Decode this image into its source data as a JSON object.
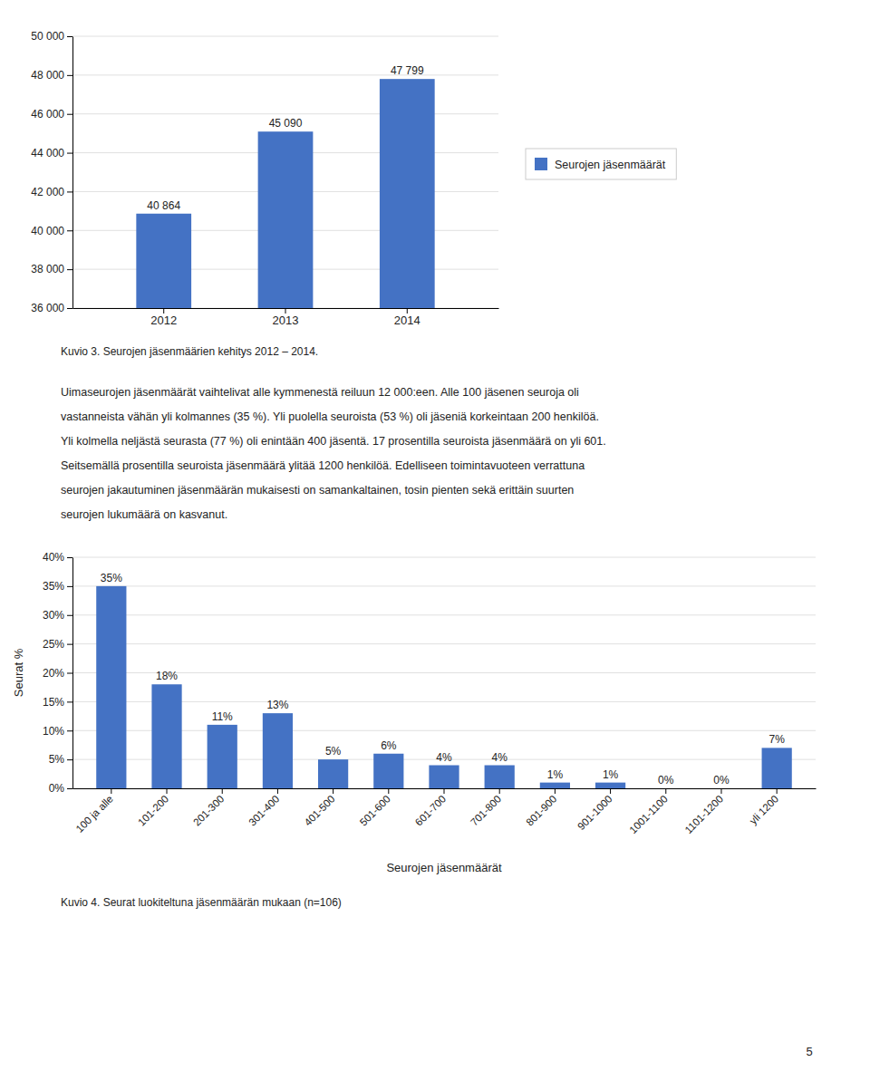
{
  "chart_data": [
    {
      "type": "bar",
      "categories": [
        "2012",
        "2013",
        "2014"
      ],
      "series": [
        {
          "name": "Seurojen jäsenmäärät",
          "color": "#4472C4",
          "values": [
            40864,
            45090,
            47799
          ],
          "value_labels": [
            "40 864",
            "45 090",
            "47 799"
          ]
        }
      ],
      "ylim": [
        36000,
        50000
      ],
      "yticks": [
        {
          "value": 36000,
          "label": "36 000"
        },
        {
          "value": 38000,
          "label": "38 000"
        },
        {
          "value": 40000,
          "label": "40 000"
        },
        {
          "value": 42000,
          "label": "42 000"
        },
        {
          "value": 44000,
          "label": "44 000"
        },
        {
          "value": 46000,
          "label": "46 000"
        },
        {
          "value": 48000,
          "label": "48 000"
        },
        {
          "value": 50000,
          "label": "50 000"
        }
      ],
      "grid": true,
      "legend": "right",
      "data_labels": true,
      "annotations": [
        "Kuvio 3. Seurojen jäsenmäärien kehitys 2012 – 2014."
      ]
    },
    {
      "type": "bar",
      "categories": [
        "100 ja alle",
        "101-200",
        "201-300",
        "301-400",
        "401-500",
        "501-600",
        "601-700",
        "701-800",
        "801-900",
        "901-1000",
        "1001-1100",
        "1101-1200",
        "yli 1200"
      ],
      "values": [
        35,
        18,
        11,
        13,
        5,
        6,
        4,
        4,
        1,
        1,
        0,
        0,
        7
      ],
      "value_labels": [
        "35%",
        "18%",
        "11%",
        "13%",
        "5%",
        "6%",
        "4%",
        "4%",
        "1%",
        "1%",
        "0%",
        "0%",
        "7%"
      ],
      "color": "#4472C4",
      "ylim": [
        0,
        40
      ],
      "yticks": [
        {
          "value": 0,
          "label": "0%"
        },
        {
          "value": 5,
          "label": "5%"
        },
        {
          "value": 10,
          "label": "10%"
        },
        {
          "value": 15,
          "label": "15%"
        },
        {
          "value": 20,
          "label": "20%"
        },
        {
          "value": 25,
          "label": "25%"
        },
        {
          "value": 30,
          "label": "30%"
        },
        {
          "value": 35,
          "label": "35%"
        },
        {
          "value": 40,
          "label": "40%"
        }
      ],
      "y_label": "Seurat %",
      "x_label": "Seurojen jäsenmäärät",
      "grid": true,
      "data_labels": true,
      "annotations": [
        "Kuvio 4. Seurat luokiteltuna jäsenmäärän mukaan (n=106)"
      ]
    }
  ],
  "text_block": [
    "Uimaseurojen jäsenmäärät vaihtelivat alle kymmenestä reiluun 12 000:een. Alle 100 jäsenen seuroja oli",
    "vastanneista vähän yli kolmannes (35 %). Yli puolella seuroista (53 %) oli jäseniä korkeintaan 200 henkilöä.",
    "Yli kolmella neljästä seurasta (77 %) oli enintään 400 jäsentä. 17 prosentilla seuroista jäsenmäärä on yli 601.",
    "Seitsemällä prosentilla seuroista jäsenmäärä ylitää 1200 henkilöä. Edelliseen toimintavuoteen verrattuna",
    "seurojen jakautuminen jäsenmäärän mukaisesti on samankaltainen, tosin pienten sekä erittäin suurten",
    "seurojen lukumäärä on kasvanut."
  ],
  "page_number": "5"
}
